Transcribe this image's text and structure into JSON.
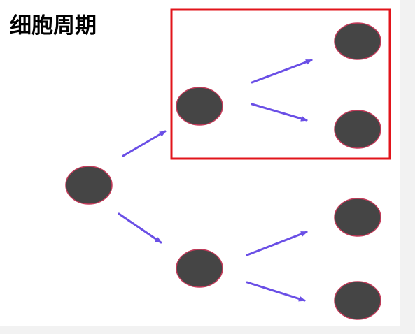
{
  "title": "细胞周期",
  "colors": {
    "cell_fill": "#454545",
    "cell_outline": "#c43b5a",
    "arrow": "#6a4fe6",
    "highlight_box": "#e2141b"
  }
}
